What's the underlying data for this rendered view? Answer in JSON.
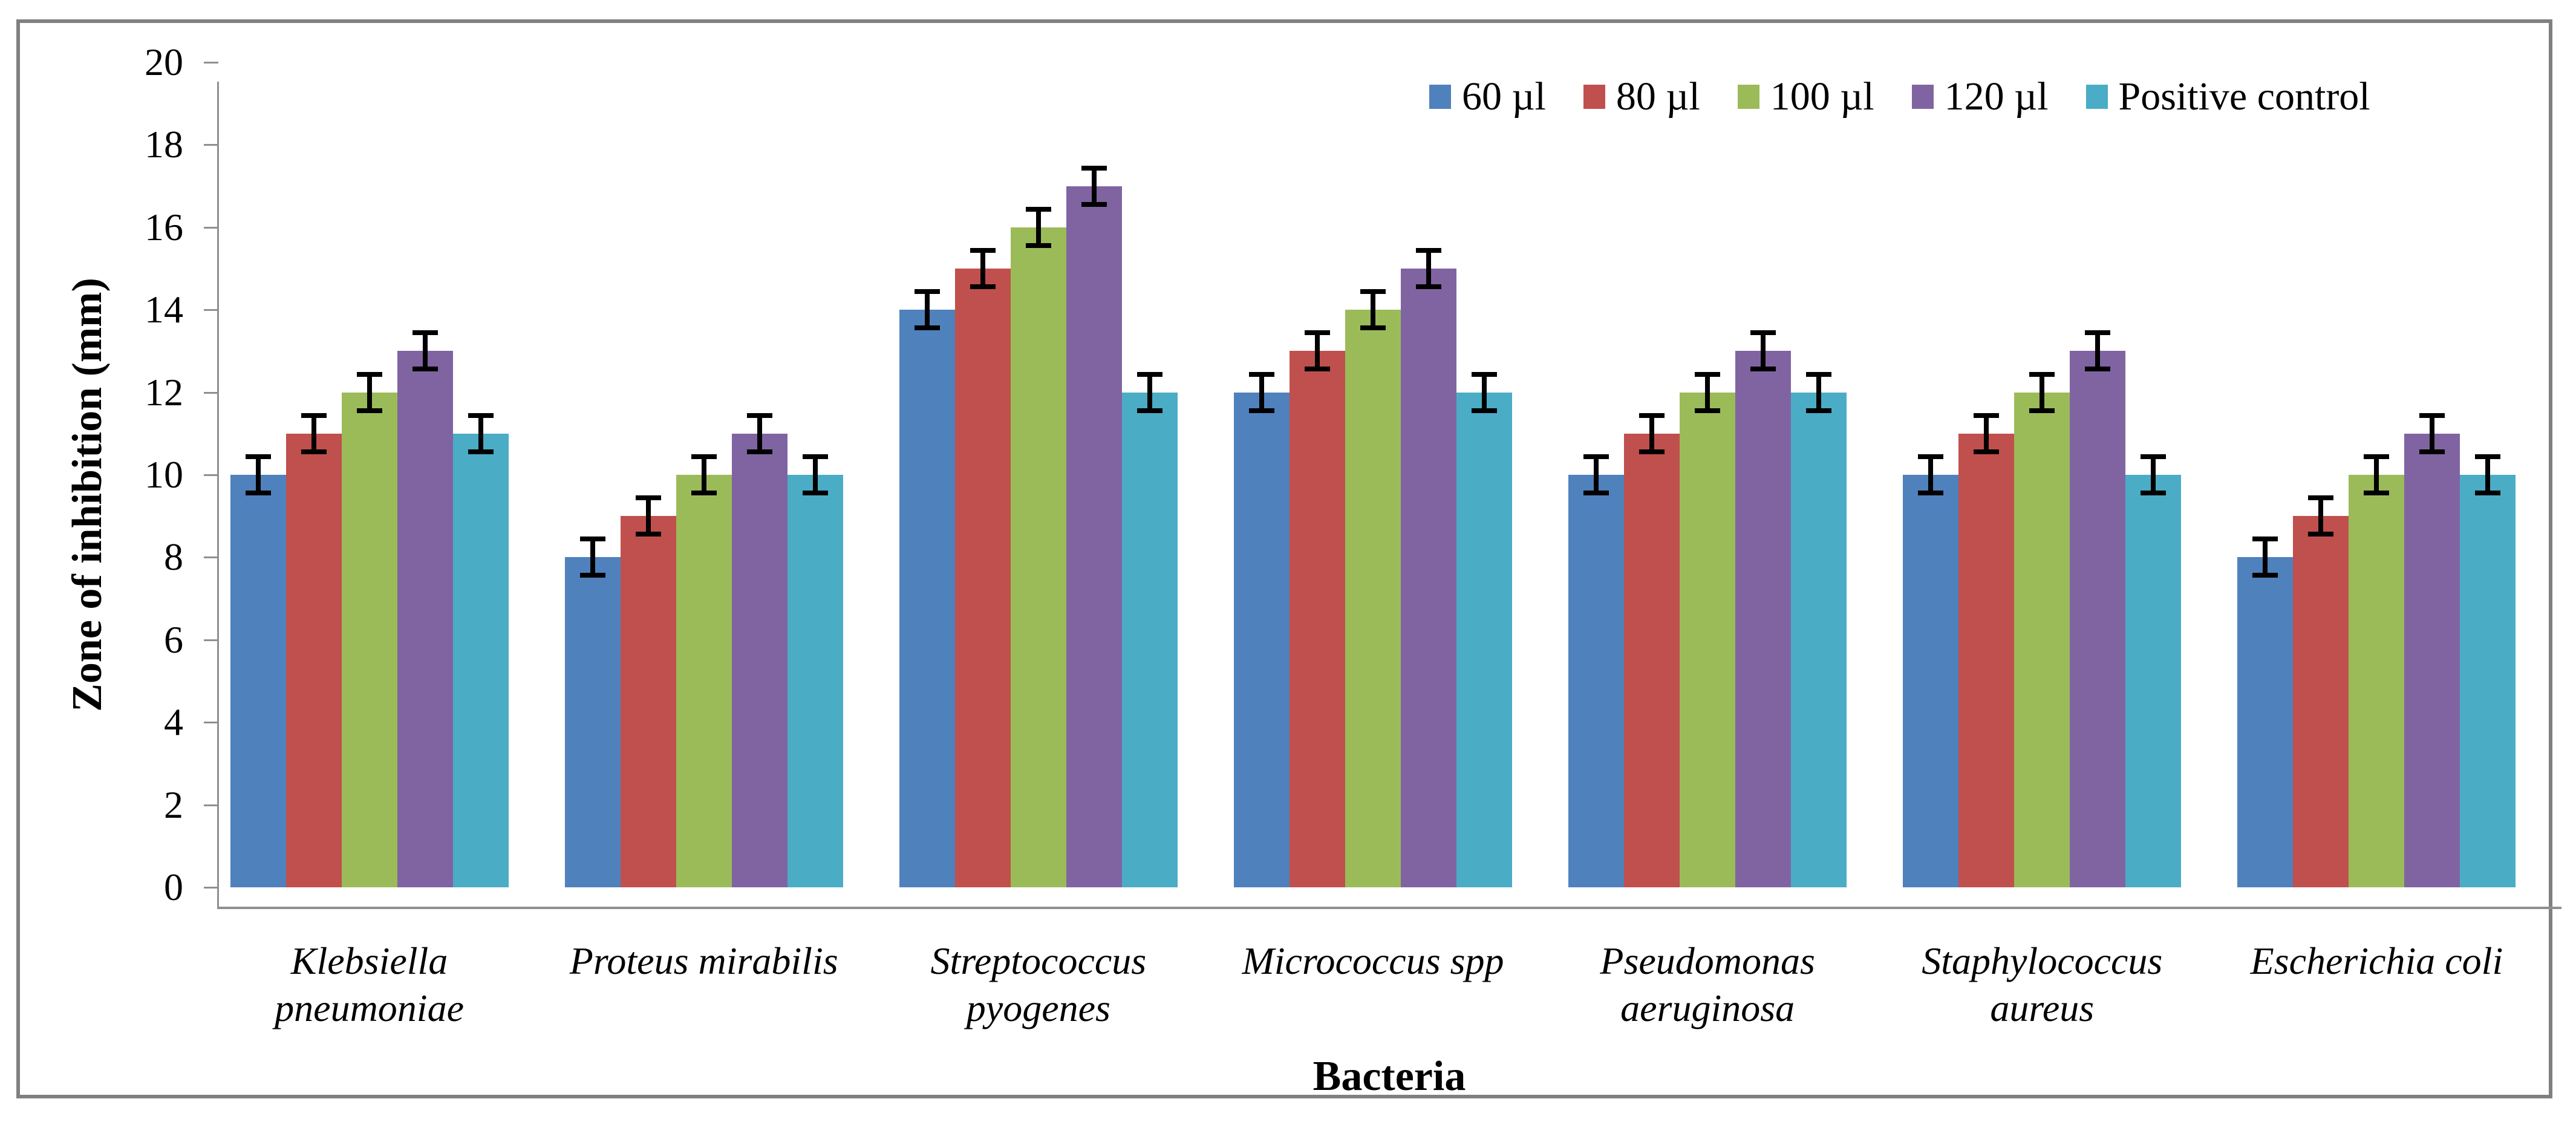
{
  "chart_data": {
    "type": "bar",
    "title": "",
    "xlabel": "Bacteria",
    "ylabel": "Zone of inhibition (mm)",
    "ylim": [
      0,
      20
    ],
    "ytick_step": 2,
    "yticks": [
      "0",
      "2",
      "4",
      "6",
      "8",
      "10",
      "12",
      "14",
      "16",
      "18",
      "20"
    ],
    "grid": false,
    "legend_position": "top-right",
    "error_plus_minus": 0.5,
    "categories": [
      "Klebsiella pneumoniae",
      "Proteus mirabilis",
      "Streptococcus pyogenes",
      "Micrococcus spp",
      "Pseudomonas aeruginosa",
      "Staphylococcus aureus",
      "Escherichia coli"
    ],
    "category_lines": [
      [
        "Klebsiella",
        "pneumoniae"
      ],
      [
        "Proteus mirabilis"
      ],
      [
        "Streptococcus",
        "pyogenes"
      ],
      [
        "Micrococcus spp"
      ],
      [
        "Pseudomonas",
        "aeruginosa"
      ],
      [
        "Staphylococcus",
        "aureus"
      ],
      [
        "Escherichia coli"
      ]
    ],
    "series": [
      {
        "name": "60 µl",
        "color": "#4F81BD",
        "values": [
          10,
          8,
          14,
          12,
          10,
          10,
          8
        ]
      },
      {
        "name": "80 µl",
        "color": "#C0504D",
        "values": [
          11,
          9,
          15,
          13,
          11,
          11,
          9
        ]
      },
      {
        "name": "100 µl",
        "color": "#9BBB59",
        "values": [
          12,
          10,
          16,
          14,
          12,
          12,
          10
        ]
      },
      {
        "name": "120 µl",
        "color": "#8064A2",
        "values": [
          13,
          11,
          17,
          15,
          13,
          13,
          11
        ]
      },
      {
        "name": "Positive control",
        "color": "#4BACC6",
        "values": [
          11,
          10,
          12,
          12,
          12,
          10,
          10
        ]
      }
    ],
    "colors": {
      "axis": "#8F8F8F",
      "frame_border": "#808080",
      "text": "#000000",
      "error_bar": "#000000"
    }
  }
}
